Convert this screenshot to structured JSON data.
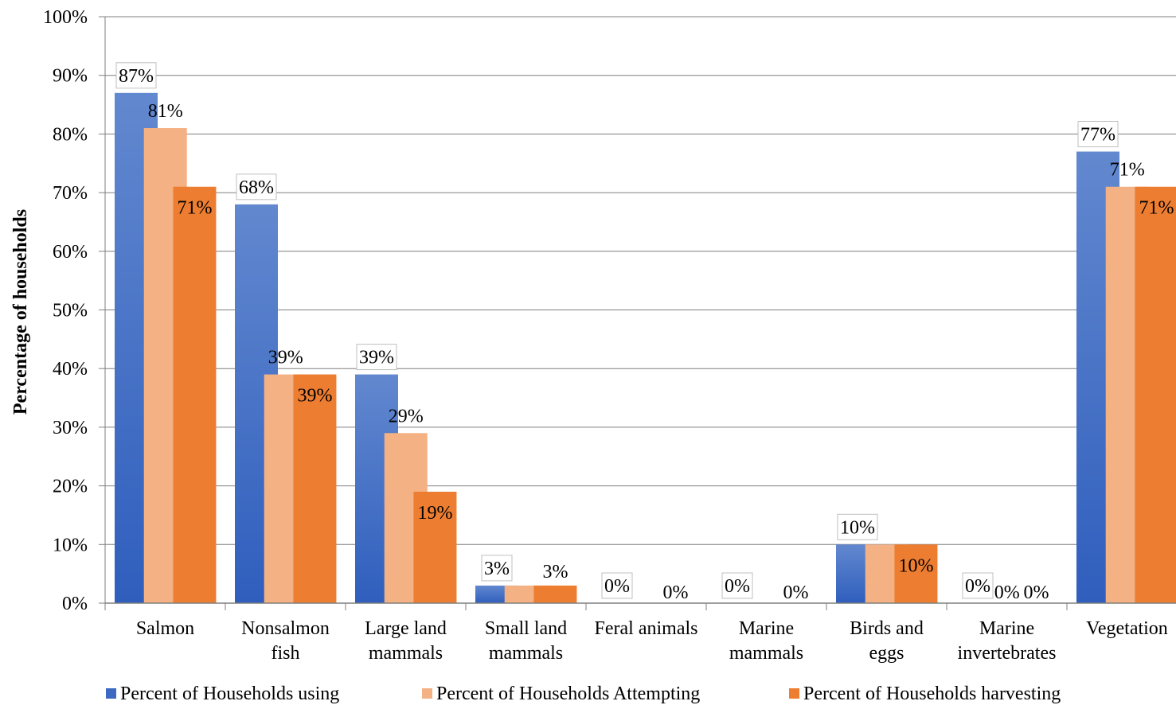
{
  "chart_data": {
    "type": "bar",
    "title": "",
    "xlabel": "",
    "ylabel": "Percentage of households",
    "ylim": [
      0,
      100
    ],
    "yticks": [
      "0%",
      "10%",
      "20%",
      "30%",
      "40%",
      "50%",
      "60%",
      "70%",
      "80%",
      "90%",
      "100%"
    ],
    "grid": true,
    "legend_position": "bottom",
    "categories": [
      [
        "Salmon"
      ],
      [
        "Nonsalmon",
        "fish"
      ],
      [
        "Large land",
        "mammals"
      ],
      [
        "Small land",
        "mammals"
      ],
      [
        "Feral animals"
      ],
      [
        "Marine",
        "mammals"
      ],
      [
        "Birds and",
        "eggs"
      ],
      [
        "Marine",
        "invertebrates"
      ],
      [
        "Vegetation"
      ]
    ],
    "series": [
      {
        "name": "Percent of Households using",
        "color": "#4472C4",
        "values": [
          87,
          68,
          39,
          3,
          0,
          0,
          10,
          0,
          77
        ],
        "labels": [
          "87%",
          "68%",
          "39%",
          "3%",
          "0%",
          "0%",
          "10%",
          "0%",
          "77%"
        ]
      },
      {
        "name": "Percent of Households Attempting",
        "color": "#F4B183",
        "values": [
          81,
          39,
          29,
          3,
          0,
          0,
          10,
          0,
          71
        ],
        "labels": [
          "81%",
          "39%",
          "29%",
          "",
          "",
          "",
          "",
          "0%",
          "71%"
        ]
      },
      {
        "name": "Percent of Households harvesting",
        "color": "#ED7D31",
        "values": [
          71,
          39,
          19,
          3,
          0,
          0,
          10,
          0,
          71
        ],
        "labels": [
          "71%",
          "39%",
          "19%",
          "3%",
          "0%",
          "0%",
          "10%",
          "0%",
          "71%"
        ]
      }
    ]
  }
}
